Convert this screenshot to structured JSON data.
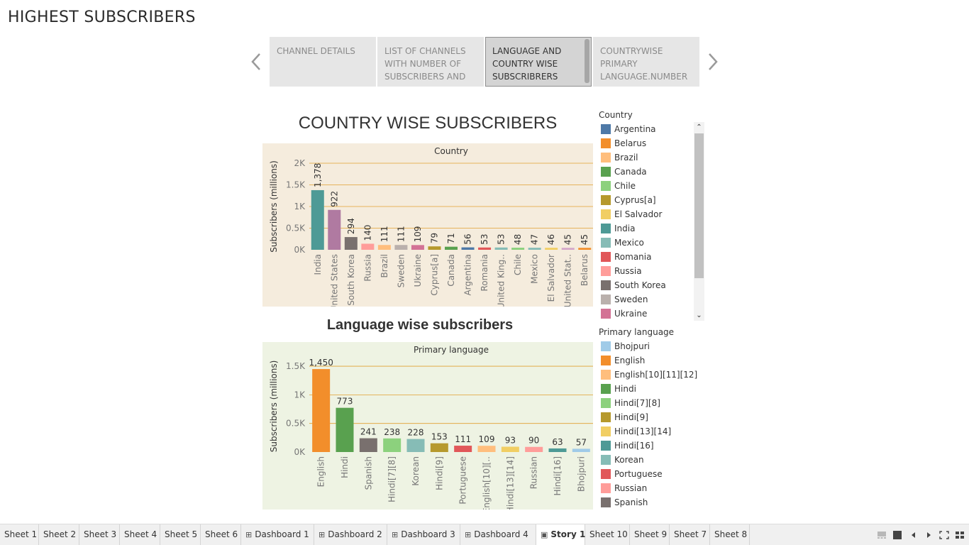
{
  "page_title": "HIGHEST SUBSCRIBERS",
  "story_points": [
    {
      "label": "CHANNEL DETAILS",
      "active": false
    },
    {
      "label": "LIST OF CHANNELS WITH NUMBER OF SUBSCRIBERS AND",
      "active": false
    },
    {
      "label": "LANGUAGE AND COUNTRY WISE SUBSCRIBRERS",
      "active": true
    },
    {
      "label": "COUNTRYWISE PRIMARY LANGUAGE.NUMBER",
      "active": false
    }
  ],
  "nav": {
    "prev_icon": "chevron-left-icon",
    "next_icon": "chevron-right-icon"
  },
  "chart_data": [
    {
      "type": "bar",
      "title": "COUNTRY WISE SUBSCRIBERS",
      "header": "Country",
      "ylabel": "Subscribers (millions)",
      "xlabel": "",
      "yticks": [
        "0K",
        "0.5K",
        "1K",
        "1.5K",
        "2K"
      ],
      "ytick_values": [
        0,
        500,
        1000,
        1500,
        2000
      ],
      "ylim": [
        0,
        2000
      ],
      "categories": [
        "India",
        "United States",
        "South Korea",
        "Russia",
        "Brazil",
        "Sweden",
        "Ukraine",
        "Cyprus[a]",
        "Canada",
        "Argentina",
        "Romania",
        "United King..",
        "Chile",
        "Mexico",
        "El Salvador",
        "United Stat..",
        "Belarus"
      ],
      "values": [
        1378,
        922,
        294,
        140,
        111,
        111,
        109,
        79,
        71,
        56,
        53,
        53,
        48,
        47,
        46,
        45,
        45
      ],
      "data_labels": [
        "1,378",
        "922",
        "294",
        "140",
        "111",
        "111",
        "109",
        "79",
        "71",
        "56",
        "53",
        "53",
        "48",
        "47",
        "46",
        "45",
        "45"
      ],
      "colors": [
        "#4e9a96",
        "#b07aa1",
        "#79706e",
        "#ff9d9a",
        "#ffbe7d",
        "#bab0ac",
        "#d37295",
        "#b6992d",
        "#59a14f",
        "#4e79a7",
        "#e15759",
        "#86bcb6",
        "#8cd17d",
        "#86bcb6",
        "#f1ce63",
        "#d4a6c8",
        "#f28e2b"
      ],
      "background": "#f5ecdd",
      "gridline_color": "#e0a030",
      "grid": true
    },
    {
      "type": "bar",
      "title": "Language wise subscribers",
      "header": "Primary language",
      "ylabel": "Subscribers (millions)",
      "xlabel": "",
      "yticks": [
        "0K",
        "0.5K",
        "1K",
        "1.5K"
      ],
      "ytick_values": [
        0,
        500,
        1000,
        1500
      ],
      "ylim": [
        0,
        1600
      ],
      "categories": [
        "English",
        "Hindi",
        "Spanish",
        "Hindi[7][8]",
        "Korean",
        "Hindi[9]",
        "Portuguese",
        "English[10][..",
        "Hindi[13][14]",
        "Russian",
        "Hindi[16]",
        "Bhojpuri"
      ],
      "values": [
        1450,
        773,
        241,
        238,
        228,
        153,
        111,
        109,
        93,
        90,
        63,
        57
      ],
      "data_labels": [
        "1,450",
        "773",
        "241",
        "238",
        "228",
        "153",
        "111",
        "109",
        "93",
        "90",
        "63",
        "57"
      ],
      "colors": [
        "#f28e2b",
        "#59a14f",
        "#79706e",
        "#8cd17d",
        "#86bcb6",
        "#b6992d",
        "#e15759",
        "#ffbe7d",
        "#f1ce63",
        "#ff9d9a",
        "#4e9a96",
        "#a0cbe8"
      ],
      "background": "#eef3e3",
      "gridline_color": "#e0a030",
      "grid": true
    }
  ],
  "legend_country": {
    "title": "Country",
    "items": [
      {
        "label": "Argentina",
        "color": "#4e79a7"
      },
      {
        "label": "Belarus",
        "color": "#f28e2b"
      },
      {
        "label": "Brazil",
        "color": "#ffbe7d"
      },
      {
        "label": "Canada",
        "color": "#59a14f"
      },
      {
        "label": "Chile",
        "color": "#8cd17d"
      },
      {
        "label": "Cyprus[a]",
        "color": "#b6992d"
      },
      {
        "label": "El Salvador",
        "color": "#f1ce63"
      },
      {
        "label": "India",
        "color": "#4e9a96"
      },
      {
        "label": "Mexico",
        "color": "#86bcb6"
      },
      {
        "label": "Romania",
        "color": "#e15759"
      },
      {
        "label": "Russia",
        "color": "#ff9d9a"
      },
      {
        "label": "South Korea",
        "color": "#79706e"
      },
      {
        "label": "Sweden",
        "color": "#bab0ac"
      },
      {
        "label": "Ukraine",
        "color": "#d37295"
      }
    ]
  },
  "legend_language": {
    "title": "Primary language",
    "items": [
      {
        "label": "Bhojpuri",
        "color": "#a0cbe8"
      },
      {
        "label": "English",
        "color": "#f28e2b"
      },
      {
        "label": "English[10][11][12]",
        "color": "#ffbe7d"
      },
      {
        "label": "Hindi",
        "color": "#59a14f"
      },
      {
        "label": "Hindi[7][8]",
        "color": "#8cd17d"
      },
      {
        "label": "Hindi[9]",
        "color": "#b6992d"
      },
      {
        "label": "Hindi[13][14]",
        "color": "#f1ce63"
      },
      {
        "label": "Hindi[16]",
        "color": "#4e9a96"
      },
      {
        "label": "Korean",
        "color": "#86bcb6"
      },
      {
        "label": "Portuguese",
        "color": "#e15759"
      },
      {
        "label": "Russian",
        "color": "#ff9d9a"
      },
      {
        "label": "Spanish",
        "color": "#79706e"
      }
    ]
  },
  "tabs": [
    {
      "label": "Sheet 1",
      "icon": "",
      "active": false
    },
    {
      "label": "Sheet 2",
      "icon": "",
      "active": false
    },
    {
      "label": "Sheet 3",
      "icon": "",
      "active": false
    },
    {
      "label": "Sheet 4",
      "icon": "",
      "active": false
    },
    {
      "label": "Sheet 5",
      "icon": "",
      "active": false
    },
    {
      "label": "Sheet 6",
      "icon": "",
      "active": false
    },
    {
      "label": "Dashboard 1",
      "icon": "dashboard-icon",
      "active": false
    },
    {
      "label": "Dashboard 2",
      "icon": "dashboard-icon",
      "active": false
    },
    {
      "label": "Dashboard 3",
      "icon": "dashboard-icon",
      "active": false
    },
    {
      "label": "Dashboard 4",
      "icon": "dashboard-icon",
      "active": false
    },
    {
      "label": "Story 1",
      "icon": "story-icon",
      "active": true
    },
    {
      "label": "Sheet 10",
      "icon": "",
      "active": false
    },
    {
      "label": "Sheet 9",
      "icon": "",
      "active": false
    },
    {
      "label": "Sheet 7",
      "icon": "",
      "active": false
    },
    {
      "label": "Sheet 8",
      "icon": "",
      "active": false
    }
  ]
}
